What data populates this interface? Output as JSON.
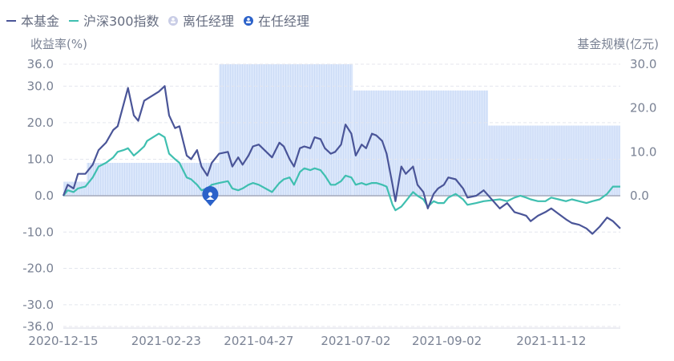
{
  "chart_data": {
    "type": "line",
    "legend": [
      {
        "name": "本基金",
        "color": "#4a5598",
        "marker": "line"
      },
      {
        "name": "沪深300指数",
        "color": "#3fbfb0",
        "marker": "line"
      },
      {
        "name": "离任经理",
        "color": "#c9cde6",
        "marker": "manager-icon"
      },
      {
        "name": "在任经理",
        "color": "#2c62c9",
        "marker": "manager-icon"
      }
    ],
    "ylabel_left": "收益率(%)",
    "ylabel_right": "基金规模(亿元)",
    "ylim_left": [
      -36.0,
      36.0
    ],
    "ylim_right": [
      0.0,
      30.0
    ],
    "yticks_left": [
      "36.0",
      "30.0",
      "20.0",
      "10.0",
      "0.0",
      "-10.0",
      "-20.0",
      "-30.0",
      "-36.0"
    ],
    "yticks_left_values": [
      36,
      30,
      20,
      10,
      0,
      -10,
      -20,
      -30,
      -36
    ],
    "yticks_right": [
      "30.0",
      "20.0",
      "10.0",
      "0.0"
    ],
    "yticks_right_values": [
      30,
      20,
      10,
      0
    ],
    "x_ticks": [
      "2020-12-15",
      "2021-02-23",
      "2021-04-27",
      "2021-07-02",
      "2021-09-02",
      "2021-11-12"
    ],
    "x_range": [
      "2020-12-15",
      "2021-12-29"
    ],
    "grid": true,
    "fund_scale": {
      "color": "#dbe7fb",
      "steps": [
        {
          "from": "2020-12-15",
          "to": "2020-12-31",
          "value": 3.2
        },
        {
          "from": "2020-12-31",
          "to": "2021-03-31",
          "value": 7.5
        },
        {
          "from": "2021-03-31",
          "to": "2021-06-30",
          "value": 30.0
        },
        {
          "from": "2021-06-30",
          "to": "2021-09-30",
          "value": 24.0
        },
        {
          "from": "2021-09-30",
          "to": "2021-12-29",
          "value": 16.0
        }
      ]
    },
    "manager_marker": {
      "date": "2021-03-25",
      "value": 0.0,
      "status": "在任经理"
    },
    "series": [
      {
        "name": "本基金",
        "color": "#4a5598",
        "points": [
          [
            "2020-12-15",
            0.0
          ],
          [
            "2020-12-18",
            3.0
          ],
          [
            "2020-12-22",
            2.0
          ],
          [
            "2020-12-25",
            6.0
          ],
          [
            "2020-12-30",
            6.0
          ],
          [
            "2021-01-04",
            8.5
          ],
          [
            "2021-01-08",
            12.5
          ],
          [
            "2021-01-13",
            14.5
          ],
          [
            "2021-01-18",
            18.0
          ],
          [
            "2021-01-21",
            19.0
          ],
          [
            "2021-01-25",
            25.0
          ],
          [
            "2021-01-28",
            29.5
          ],
          [
            "2021-02-01",
            22.0
          ],
          [
            "2021-02-04",
            20.5
          ],
          [
            "2021-02-08",
            26.0
          ],
          [
            "2021-02-10",
            26.5
          ],
          [
            "2021-02-18",
            28.5
          ],
          [
            "2021-02-22",
            30.0
          ],
          [
            "2021-02-25",
            22.0
          ],
          [
            "2021-03-01",
            18.5
          ],
          [
            "2021-03-04",
            19.0
          ],
          [
            "2021-03-09",
            11.0
          ],
          [
            "2021-03-12",
            10.0
          ],
          [
            "2021-03-16",
            12.5
          ],
          [
            "2021-03-19",
            8.0
          ],
          [
            "2021-03-23",
            5.5
          ],
          [
            "2021-03-26",
            9.0
          ],
          [
            "2021-03-31",
            11.5
          ],
          [
            "2021-04-06",
            12.0
          ],
          [
            "2021-04-09",
            8.0
          ],
          [
            "2021-04-13",
            10.5
          ],
          [
            "2021-04-16",
            8.5
          ],
          [
            "2021-04-20",
            11.0
          ],
          [
            "2021-04-23",
            13.5
          ],
          [
            "2021-04-27",
            14.0
          ],
          [
            "2021-05-06",
            10.5
          ],
          [
            "2021-05-11",
            14.5
          ],
          [
            "2021-05-14",
            13.5
          ],
          [
            "2021-05-18",
            10.0
          ],
          [
            "2021-05-21",
            8.0
          ],
          [
            "2021-05-25",
            13.0
          ],
          [
            "2021-05-28",
            13.5
          ],
          [
            "2021-06-01",
            13.0
          ],
          [
            "2021-06-04",
            16.0
          ],
          [
            "2021-06-08",
            15.5
          ],
          [
            "2021-06-11",
            13.0
          ],
          [
            "2021-06-15",
            11.5
          ],
          [
            "2021-06-18",
            12.0
          ],
          [
            "2021-06-22",
            14.0
          ],
          [
            "2021-06-25",
            19.5
          ],
          [
            "2021-06-29",
            17.0
          ],
          [
            "2021-07-02",
            11.0
          ],
          [
            "2021-07-06",
            14.0
          ],
          [
            "2021-07-09",
            13.0
          ],
          [
            "2021-07-13",
            17.0
          ],
          [
            "2021-07-16",
            16.5
          ],
          [
            "2021-07-20",
            15.0
          ],
          [
            "2021-07-23",
            11.5
          ],
          [
            "2021-07-27",
            3.0
          ],
          [
            "2021-07-29",
            -1.5
          ],
          [
            "2021-08-02",
            8.0
          ],
          [
            "2021-08-05",
            6.0
          ],
          [
            "2021-08-10",
            8.0
          ],
          [
            "2021-08-13",
            3.0
          ],
          [
            "2021-08-17",
            1.0
          ],
          [
            "2021-08-20",
            -3.5
          ],
          [
            "2021-08-24",
            0.5
          ],
          [
            "2021-08-27",
            2.0
          ],
          [
            "2021-08-31",
            3.0
          ],
          [
            "2021-09-03",
            5.0
          ],
          [
            "2021-09-08",
            4.5
          ],
          [
            "2021-09-13",
            2.0
          ],
          [
            "2021-09-16",
            -0.5
          ],
          [
            "2021-09-22",
            0.0
          ],
          [
            "2021-09-27",
            1.5
          ],
          [
            "2021-10-08",
            -3.5
          ],
          [
            "2021-10-13",
            -2.0
          ],
          [
            "2021-10-18",
            -4.5
          ],
          [
            "2021-10-22",
            -5.0
          ],
          [
            "2021-10-26",
            -5.5
          ],
          [
            "2021-10-29",
            -7.0
          ],
          [
            "2021-11-03",
            -5.5
          ],
          [
            "2021-11-08",
            -4.5
          ],
          [
            "2021-11-12",
            -3.5
          ],
          [
            "2021-11-17",
            -5.0
          ],
          [
            "2021-11-22",
            -6.5
          ],
          [
            "2021-11-26",
            -7.5
          ],
          [
            "2021-12-01",
            -8.0
          ],
          [
            "2021-12-06",
            -9.0
          ],
          [
            "2021-12-10",
            -10.5
          ],
          [
            "2021-12-15",
            -8.5
          ],
          [
            "2021-12-20",
            -6.0
          ],
          [
            "2021-12-24",
            -7.0
          ],
          [
            "2021-12-29",
            -9.0
          ]
        ]
      },
      {
        "name": "沪深300指数",
        "color": "#3fbfb0",
        "points": [
          [
            "2020-12-15",
            0.0
          ],
          [
            "2020-12-18",
            1.5
          ],
          [
            "2020-12-22",
            1.0
          ],
          [
            "2020-12-25",
            2.0
          ],
          [
            "2020-12-30",
            2.5
          ],
          [
            "2021-01-04",
            5.0
          ],
          [
            "2021-01-08",
            8.0
          ],
          [
            "2021-01-13",
            9.0
          ],
          [
            "2021-01-18",
            10.5
          ],
          [
            "2021-01-21",
            12.0
          ],
          [
            "2021-01-25",
            12.5
          ],
          [
            "2021-01-28",
            13.0
          ],
          [
            "2021-02-01",
            11.0
          ],
          [
            "2021-02-04",
            12.0
          ],
          [
            "2021-02-08",
            13.5
          ],
          [
            "2021-02-10",
            15.0
          ],
          [
            "2021-02-18",
            17.0
          ],
          [
            "2021-02-22",
            16.0
          ],
          [
            "2021-02-25",
            11.5
          ],
          [
            "2021-03-01",
            10.0
          ],
          [
            "2021-03-04",
            9.0
          ],
          [
            "2021-03-09",
            5.0
          ],
          [
            "2021-03-12",
            4.5
          ],
          [
            "2021-03-16",
            3.0
          ],
          [
            "2021-03-19",
            1.5
          ],
          [
            "2021-03-23",
            2.0
          ],
          [
            "2021-03-26",
            3.0
          ],
          [
            "2021-03-31",
            3.5
          ],
          [
            "2021-04-06",
            4.0
          ],
          [
            "2021-04-09",
            2.0
          ],
          [
            "2021-04-13",
            1.5
          ],
          [
            "2021-04-16",
            2.0
          ],
          [
            "2021-04-20",
            3.0
          ],
          [
            "2021-04-23",
            3.5
          ],
          [
            "2021-04-27",
            3.0
          ],
          [
            "2021-05-06",
            1.0
          ],
          [
            "2021-05-11",
            3.5
          ],
          [
            "2021-05-14",
            4.5
          ],
          [
            "2021-05-18",
            5.0
          ],
          [
            "2021-05-21",
            3.0
          ],
          [
            "2021-05-25",
            6.5
          ],
          [
            "2021-05-28",
            7.5
          ],
          [
            "2021-06-01",
            7.0
          ],
          [
            "2021-06-04",
            7.5
          ],
          [
            "2021-06-08",
            7.0
          ],
          [
            "2021-06-11",
            5.5
          ],
          [
            "2021-06-15",
            3.0
          ],
          [
            "2021-06-18",
            3.0
          ],
          [
            "2021-06-22",
            4.0
          ],
          [
            "2021-06-25",
            5.5
          ],
          [
            "2021-06-29",
            5.0
          ],
          [
            "2021-07-02",
            3.0
          ],
          [
            "2021-07-06",
            3.5
          ],
          [
            "2021-07-09",
            3.0
          ],
          [
            "2021-07-13",
            3.5
          ],
          [
            "2021-07-16",
            3.5
          ],
          [
            "2021-07-20",
            3.0
          ],
          [
            "2021-07-23",
            2.5
          ],
          [
            "2021-07-27",
            -2.5
          ],
          [
            "2021-07-29",
            -4.0
          ],
          [
            "2021-08-02",
            -3.0
          ],
          [
            "2021-08-05",
            -1.5
          ],
          [
            "2021-08-10",
            1.0
          ],
          [
            "2021-08-13",
            0.0
          ],
          [
            "2021-08-17",
            -1.0
          ],
          [
            "2021-08-20",
            -3.0
          ],
          [
            "2021-08-24",
            -1.5
          ],
          [
            "2021-08-27",
            -2.0
          ],
          [
            "2021-08-31",
            -2.0
          ],
          [
            "2021-09-03",
            -0.5
          ],
          [
            "2021-09-08",
            0.5
          ],
          [
            "2021-09-13",
            -1.0
          ],
          [
            "2021-09-16",
            -2.5
          ],
          [
            "2021-09-22",
            -2.0
          ],
          [
            "2021-09-27",
            -1.5
          ],
          [
            "2021-10-08",
            -1.0
          ],
          [
            "2021-10-13",
            -1.5
          ],
          [
            "2021-10-18",
            -0.5
          ],
          [
            "2021-10-22",
            0.0
          ],
          [
            "2021-10-26",
            -0.5
          ],
          [
            "2021-10-29",
            -1.0
          ],
          [
            "2021-11-03",
            -1.5
          ],
          [
            "2021-11-08",
            -1.5
          ],
          [
            "2021-11-12",
            -0.5
          ],
          [
            "2021-11-17",
            -1.0
          ],
          [
            "2021-11-22",
            -1.5
          ],
          [
            "2021-11-26",
            -1.0
          ],
          [
            "2021-12-01",
            -1.5
          ],
          [
            "2021-12-06",
            -2.0
          ],
          [
            "2021-12-10",
            -1.5
          ],
          [
            "2021-12-15",
            -1.0
          ],
          [
            "2021-12-20",
            0.5
          ],
          [
            "2021-12-24",
            2.5
          ],
          [
            "2021-12-29",
            2.5
          ]
        ]
      }
    ]
  }
}
